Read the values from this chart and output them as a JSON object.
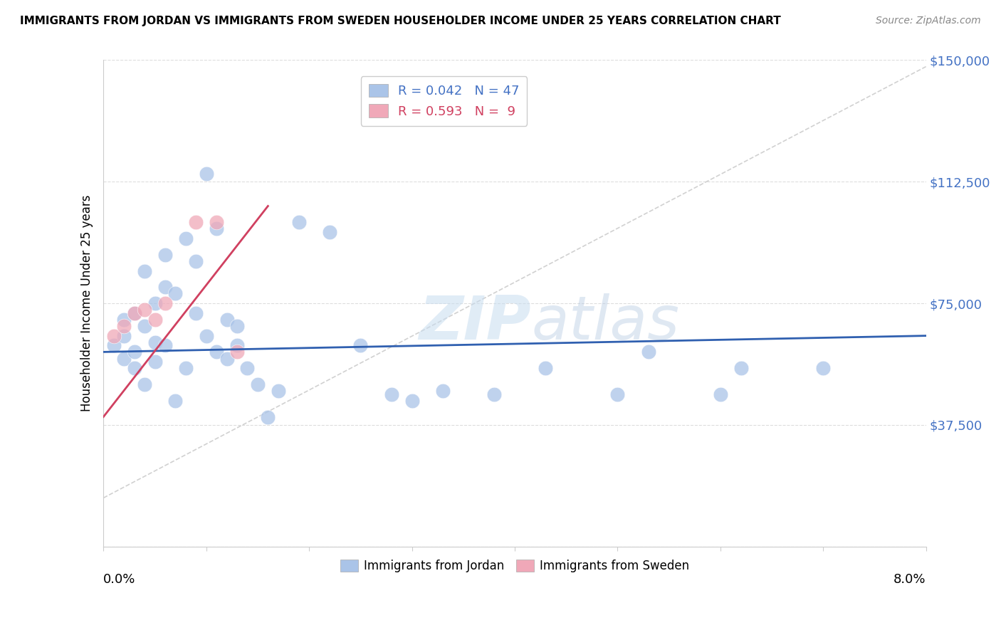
{
  "title": "IMMIGRANTS FROM JORDAN VS IMMIGRANTS FROM SWEDEN HOUSEHOLDER INCOME UNDER 25 YEARS CORRELATION CHART",
  "source": "Source: ZipAtlas.com",
  "ylabel": "Householder Income Under 25 years",
  "xmin": 0.0,
  "xmax": 0.08,
  "ymin": 0,
  "ymax": 150000,
  "yticks": [
    0,
    37500,
    75000,
    112500,
    150000
  ],
  "ytick_labels": [
    "",
    "$37,500",
    "$75,000",
    "$112,500",
    "$150,000"
  ],
  "watermark_zip": "ZIP",
  "watermark_atlas": "atlas",
  "jordan_color": "#aac4e8",
  "sweden_color": "#f0a8b8",
  "jordan_line_color": "#3060b0",
  "sweden_line_color": "#d04060",
  "ref_line_color": "#cccccc",
  "background_color": "#ffffff",
  "grid_color": "#dddddd",
  "jordan_points_x": [
    0.001,
    0.002,
    0.002,
    0.002,
    0.003,
    0.003,
    0.003,
    0.004,
    0.004,
    0.004,
    0.005,
    0.005,
    0.005,
    0.006,
    0.006,
    0.006,
    0.007,
    0.007,
    0.008,
    0.008,
    0.009,
    0.009,
    0.01,
    0.01,
    0.011,
    0.011,
    0.012,
    0.012,
    0.013,
    0.013,
    0.014,
    0.015,
    0.016,
    0.017,
    0.019,
    0.022,
    0.025,
    0.028,
    0.03,
    0.033,
    0.038,
    0.043,
    0.05,
    0.053,
    0.06,
    0.062,
    0.07
  ],
  "jordan_points_y": [
    62000,
    58000,
    70000,
    65000,
    55000,
    60000,
    72000,
    68000,
    50000,
    85000,
    63000,
    57000,
    75000,
    80000,
    62000,
    90000,
    45000,
    78000,
    55000,
    95000,
    72000,
    88000,
    65000,
    115000,
    98000,
    60000,
    70000,
    58000,
    62000,
    68000,
    55000,
    50000,
    40000,
    48000,
    100000,
    97000,
    62000,
    47000,
    45000,
    48000,
    47000,
    55000,
    47000,
    60000,
    47000,
    55000,
    55000
  ],
  "sweden_points_x": [
    0.001,
    0.002,
    0.003,
    0.004,
    0.005,
    0.006,
    0.009,
    0.011,
    0.013
  ],
  "sweden_points_y": [
    65000,
    68000,
    72000,
    73000,
    70000,
    75000,
    100000,
    100000,
    60000
  ],
  "jordan_line_x": [
    0.0,
    0.08
  ],
  "jordan_line_y": [
    60000,
    65000
  ],
  "sweden_line_x": [
    0.0,
    0.016
  ],
  "sweden_line_y": [
    40000,
    105000
  ],
  "ref_line_x": [
    0.0,
    0.08
  ],
  "ref_line_y": [
    15000,
    148000
  ]
}
